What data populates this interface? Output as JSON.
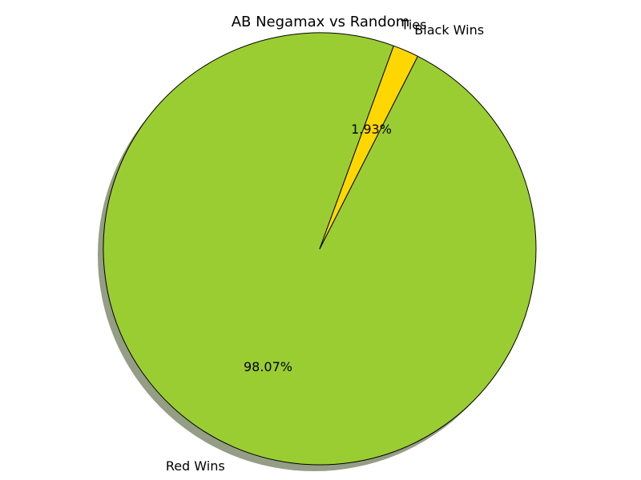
{
  "chart_data": {
    "type": "pie",
    "title": "AB Negamax vs Random",
    "categories": [
      "Red Wins",
      "Black Wins",
      "Ties"
    ],
    "values": [
      98.07,
      1.93,
      0.0
    ],
    "percent_labels": [
      "98.07%",
      "1.93%",
      ""
    ],
    "colors": [
      "#9acd32",
      "#ffd700",
      "#87ceeb"
    ],
    "shadow": true,
    "edge_color": "#000000"
  }
}
